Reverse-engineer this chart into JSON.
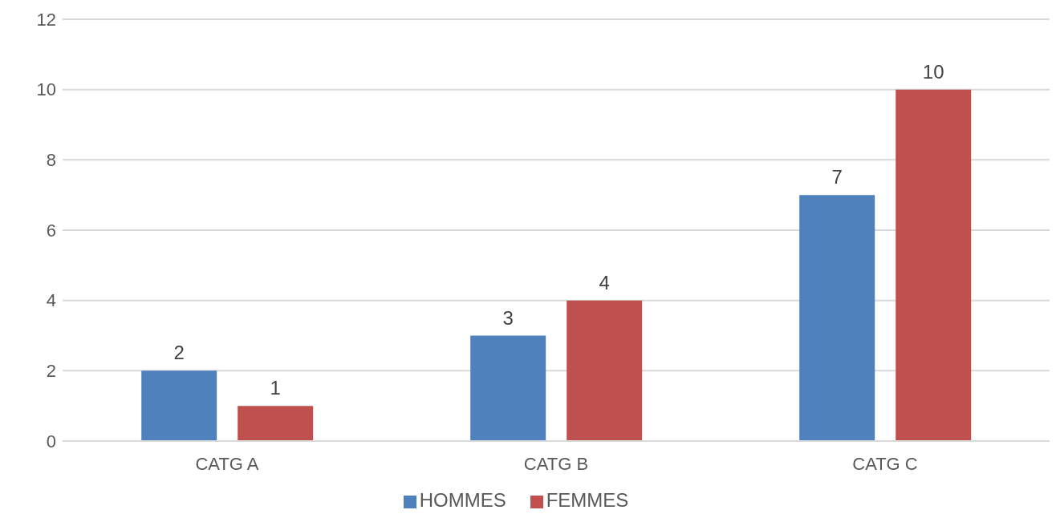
{
  "chart_data": {
    "type": "bar",
    "categories": [
      "CATG A",
      "CATG B",
      "CATG C"
    ],
    "series": [
      {
        "name": "HOMMES",
        "color": "#4f81bd",
        "values": [
          2,
          3,
          7
        ]
      },
      {
        "name": "FEMMES",
        "color": "#c0504d",
        "values": [
          1,
          4,
          10
        ]
      }
    ],
    "ylim": [
      0,
      12
    ],
    "yticks": [
      0,
      2,
      4,
      6,
      8,
      10,
      12
    ],
    "grid": "y",
    "legend": "bottom",
    "data_labels": true
  }
}
